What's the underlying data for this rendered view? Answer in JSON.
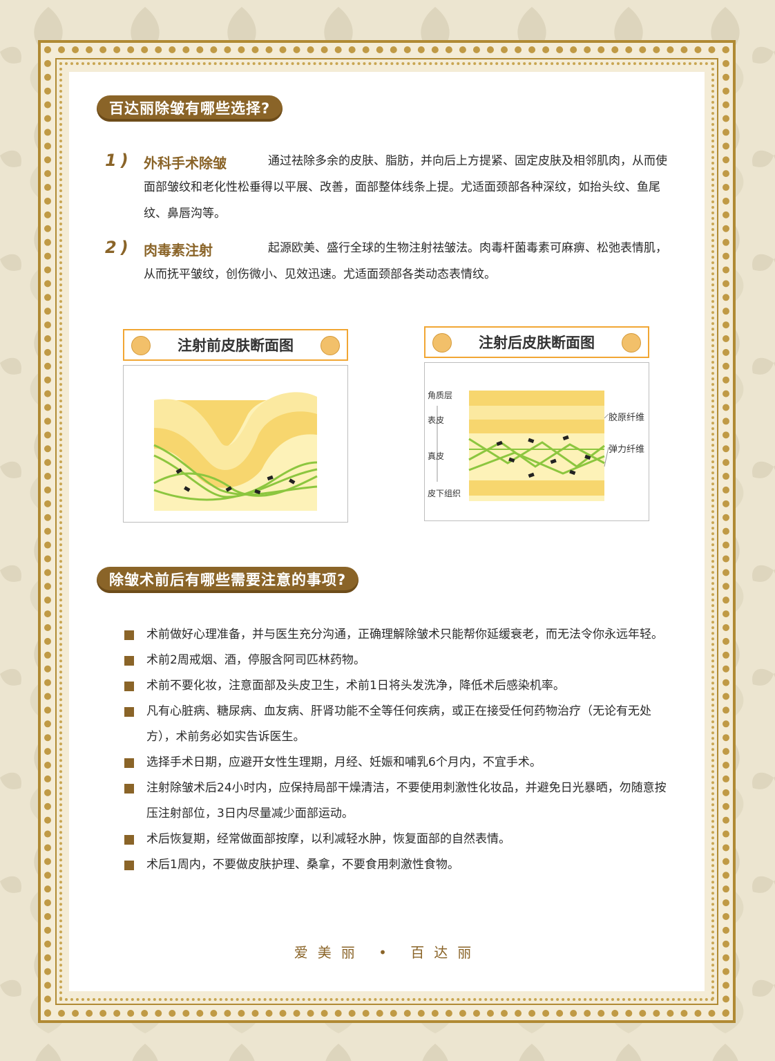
{
  "section1": {
    "heading": "百达丽除皱有哪些选择?",
    "item1": {
      "number": "1)",
      "title": "外科手术除皱",
      "text": "通过祛除多余的皮肤、脂肪，并向后上方提紧、固定皮肤及相邻肌肉，从而使面部皱纹和老化性松垂得以平展、改善，面部整体线条上提。尤适面颈部各种深纹，如抬头纹、鱼尾纹、鼻唇沟等。"
    },
    "item2": {
      "number": "2)",
      "title": "肉毒素注射",
      "text": "起源欧美、盛行全球的生物注射祛皱法。肉毒杆菌毒素可麻痹、松弛表情肌，从而抚平皱纹，创伤微小、见效迅速。尤适面颈部各类动态表情纹。"
    }
  },
  "diagrams": {
    "before": {
      "title": "注射前皮肤断面图"
    },
    "after": {
      "title": "注射后皮肤断面图",
      "layers": [
        "角质层",
        "表皮",
        "真皮",
        "皮下组织"
      ],
      "labels": [
        "胶原纤维",
        "弹力纤维"
      ]
    }
  },
  "section2": {
    "heading": "除皱术前后有哪些需要注意的事项?",
    "bullets": [
      "术前做好心理准备，并与医生充分沟通，正确理解除皱术只能帮你延缓衰老，而无法令你永远年轻。",
      "术前2周戒烟、酒，停服含阿司匹林药物。",
      "术前不要化妆，注意面部及头皮卫生，术前1日将头发洗净，降低术后感染机率。",
      "凡有心脏病、糖尿病、血友病、肝肾功能不全等任何疾病，或正在接受任何药物治疗（无论有无处方），术前务必如实告诉医生。",
      "选择手术日期，应避开女性生理期，月经、妊娠和哺乳6个月内，不宜手术。",
      "注射除皱术后24小时内，应保持局部干燥清洁，不要使用刺激性化妆品，并避免日光暴晒，勿随意按压注射部位，3日内尽量减少面部运动。",
      "术后恢复期，经常做面部按摩，以利减轻水肿，恢复面部的自然表情。",
      "术后1周内，不要做皮肤护理、桑拿，不要食用刺激性食物。"
    ]
  },
  "footer": {
    "text": "爱美丽 • 百达丽"
  },
  "colors": {
    "brown": "#8a6428",
    "gold": "#c09a45",
    "orange": "#f1a633",
    "yellow": "#f7d66e",
    "green": "#8cc63f"
  }
}
